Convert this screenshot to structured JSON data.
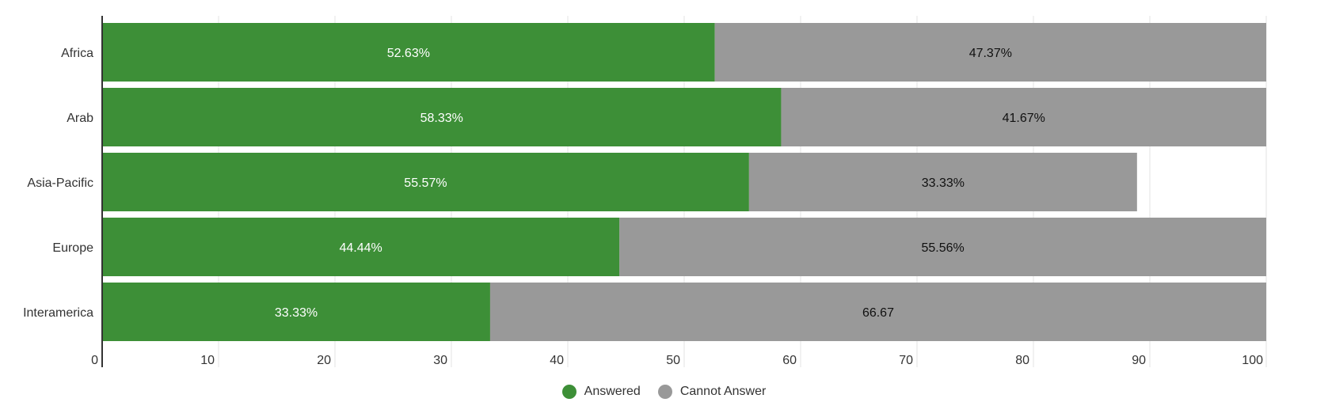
{
  "chart_data": {
    "type": "bar",
    "orientation": "horizontal",
    "stacked": true,
    "title": "",
    "xlabel": "",
    "ylabel": "",
    "xlim": [
      0,
      100
    ],
    "x_ticks": [
      "0",
      "10",
      "20",
      "30",
      "40",
      "50",
      "60",
      "70",
      "80",
      "90",
      "100"
    ],
    "grid": true,
    "legend_position": "bottom-center",
    "categories": [
      "Africa",
      "Arab",
      "Asia-Pacific",
      "Europe",
      "Interamerica"
    ],
    "series": [
      {
        "name": "Answered",
        "color": "#3d8f37",
        "label_color": "#ffffff",
        "values": [
          52.63,
          58.33,
          55.57,
          44.44,
          33.33
        ],
        "labels": [
          "52.63%",
          "58.33%",
          "55.57%",
          "44.44%",
          "33.33%"
        ]
      },
      {
        "name": "Cannot Answer",
        "color": "#999999",
        "label_color": "#111111",
        "values": [
          47.37,
          41.67,
          33.33,
          55.56,
          66.67
        ],
        "labels": [
          "47.37%",
          "41.67%",
          "33.33%",
          "55.56%",
          "66.67"
        ]
      }
    ]
  }
}
